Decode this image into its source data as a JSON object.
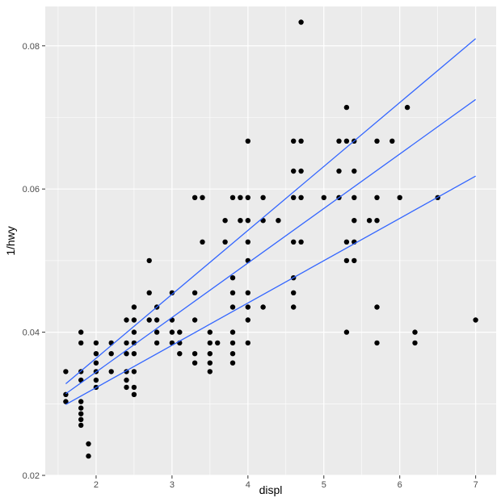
{
  "chart_data": {
    "type": "scatter",
    "title": "",
    "xlabel": "displ",
    "ylabel": "1/hwy",
    "xlim": [
      1.33,
      7.27
    ],
    "ylim": [
      0.02,
      0.0855
    ],
    "x_ticks": [
      2,
      3,
      4,
      5,
      6,
      7
    ],
    "x_tick_labels": [
      "2",
      "3",
      "4",
      "5",
      "6",
      "7"
    ],
    "x_minor_ticks": [
      1.5,
      2.5,
      3.5,
      4.5,
      5.5,
      6.5
    ],
    "y_ticks": [
      0.02,
      0.04,
      0.06,
      0.08
    ],
    "y_tick_labels": [
      "0.02",
      "0.04",
      "0.06",
      "0.08"
    ],
    "y_minor_ticks": [
      0.03,
      0.05,
      0.07
    ],
    "grid": true,
    "colors": {
      "panel_background": "#ebebeb",
      "grid": "#ffffff",
      "points": "#000000",
      "lines": "#3366ff"
    },
    "points": [
      [
        1.6,
        0.0345
      ],
      [
        1.6,
        0.0313
      ],
      [
        1.6,
        0.0303
      ],
      [
        1.8,
        0.04
      ],
      [
        1.8,
        0.0385
      ],
      [
        1.8,
        0.0345
      ],
      [
        1.8,
        0.0333
      ],
      [
        1.8,
        0.0303
      ],
      [
        1.8,
        0.0294
      ],
      [
        1.8,
        0.0286
      ],
      [
        1.8,
        0.0278
      ],
      [
        1.8,
        0.027
      ],
      [
        1.9,
        0.0244
      ],
      [
        1.9,
        0.0227
      ],
      [
        2.0,
        0.0385
      ],
      [
        2.0,
        0.037
      ],
      [
        2.0,
        0.0357
      ],
      [
        2.0,
        0.0345
      ],
      [
        2.0,
        0.0333
      ],
      [
        2.0,
        0.0323
      ],
      [
        2.2,
        0.0385
      ],
      [
        2.2,
        0.037
      ],
      [
        2.2,
        0.0345
      ],
      [
        2.4,
        0.0417
      ],
      [
        2.4,
        0.0385
      ],
      [
        2.4,
        0.037
      ],
      [
        2.4,
        0.0345
      ],
      [
        2.4,
        0.0333
      ],
      [
        2.4,
        0.0323
      ],
      [
        2.5,
        0.0435
      ],
      [
        2.5,
        0.0417
      ],
      [
        2.5,
        0.04
      ],
      [
        2.5,
        0.0385
      ],
      [
        2.5,
        0.037
      ],
      [
        2.5,
        0.0345
      ],
      [
        2.5,
        0.0323
      ],
      [
        2.5,
        0.0313
      ],
      [
        2.7,
        0.05
      ],
      [
        2.7,
        0.0455
      ],
      [
        2.7,
        0.0417
      ],
      [
        2.8,
        0.0435
      ],
      [
        2.8,
        0.0417
      ],
      [
        2.8,
        0.04
      ],
      [
        2.8,
        0.0385
      ],
      [
        3.0,
        0.0455
      ],
      [
        3.0,
        0.0417
      ],
      [
        3.0,
        0.04
      ],
      [
        3.0,
        0.0385
      ],
      [
        3.1,
        0.04
      ],
      [
        3.1,
        0.0385
      ],
      [
        3.1,
        0.037
      ],
      [
        3.3,
        0.0588
      ],
      [
        3.3,
        0.0455
      ],
      [
        3.3,
        0.0417
      ],
      [
        3.3,
        0.037
      ],
      [
        3.3,
        0.0357
      ],
      [
        3.4,
        0.0588
      ],
      [
        3.4,
        0.0526
      ],
      [
        3.5,
        0.04
      ],
      [
        3.5,
        0.0385
      ],
      [
        3.5,
        0.037
      ],
      [
        3.5,
        0.0357
      ],
      [
        3.5,
        0.0345
      ],
      [
        3.6,
        0.0385
      ],
      [
        3.7,
        0.0556
      ],
      [
        3.7,
        0.0526
      ],
      [
        3.8,
        0.0588
      ],
      [
        3.8,
        0.0476
      ],
      [
        3.8,
        0.0455
      ],
      [
        3.8,
        0.0435
      ],
      [
        3.8,
        0.04
      ],
      [
        3.8,
        0.0385
      ],
      [
        3.8,
        0.037
      ],
      [
        3.8,
        0.0357
      ],
      [
        3.9,
        0.0588
      ],
      [
        3.9,
        0.0556
      ],
      [
        4.0,
        0.0667
      ],
      [
        4.0,
        0.0588
      ],
      [
        4.0,
        0.0556
      ],
      [
        4.0,
        0.0526
      ],
      [
        4.0,
        0.05
      ],
      [
        4.0,
        0.0455
      ],
      [
        4.0,
        0.0435
      ],
      [
        4.0,
        0.0417
      ],
      [
        4.0,
        0.0385
      ],
      [
        4.2,
        0.0588
      ],
      [
        4.2,
        0.0556
      ],
      [
        4.2,
        0.0435
      ],
      [
        4.4,
        0.0556
      ],
      [
        4.6,
        0.0667
      ],
      [
        4.6,
        0.0625
      ],
      [
        4.6,
        0.0588
      ],
      [
        4.6,
        0.0526
      ],
      [
        4.6,
        0.0476
      ],
      [
        4.6,
        0.0455
      ],
      [
        4.6,
        0.0435
      ],
      [
        4.7,
        0.0833
      ],
      [
        4.7,
        0.0667
      ],
      [
        4.7,
        0.0625
      ],
      [
        4.7,
        0.0588
      ],
      [
        4.7,
        0.0526
      ],
      [
        5.0,
        0.0588
      ],
      [
        5.2,
        0.0667
      ],
      [
        5.2,
        0.0625
      ],
      [
        5.2,
        0.0588
      ],
      [
        5.3,
        0.0714
      ],
      [
        5.3,
        0.0667
      ],
      [
        5.3,
        0.0526
      ],
      [
        5.3,
        0.05
      ],
      [
        5.3,
        0.04
      ],
      [
        5.4,
        0.0667
      ],
      [
        5.4,
        0.0625
      ],
      [
        5.4,
        0.0588
      ],
      [
        5.4,
        0.0556
      ],
      [
        5.4,
        0.0526
      ],
      [
        5.4,
        0.05
      ],
      [
        5.6,
        0.0556
      ],
      [
        5.7,
        0.0667
      ],
      [
        5.7,
        0.0588
      ],
      [
        5.7,
        0.0556
      ],
      [
        5.7,
        0.0435
      ],
      [
        5.7,
        0.0385
      ],
      [
        5.9,
        0.0667
      ],
      [
        6.0,
        0.0588
      ],
      [
        6.1,
        0.0714
      ],
      [
        6.2,
        0.04
      ],
      [
        6.2,
        0.0385
      ],
      [
        6.5,
        0.0588
      ],
      [
        7.0,
        0.0417
      ]
    ],
    "lines": [
      {
        "x": [
          1.6,
          7.0
        ],
        "y": [
          0.0328,
          0.081
        ]
      },
      {
        "x": [
          1.6,
          7.0
        ],
        "y": [
          0.0314,
          0.0725
        ]
      },
      {
        "x": [
          1.6,
          7.0
        ],
        "y": [
          0.0299,
          0.0618
        ]
      }
    ]
  }
}
